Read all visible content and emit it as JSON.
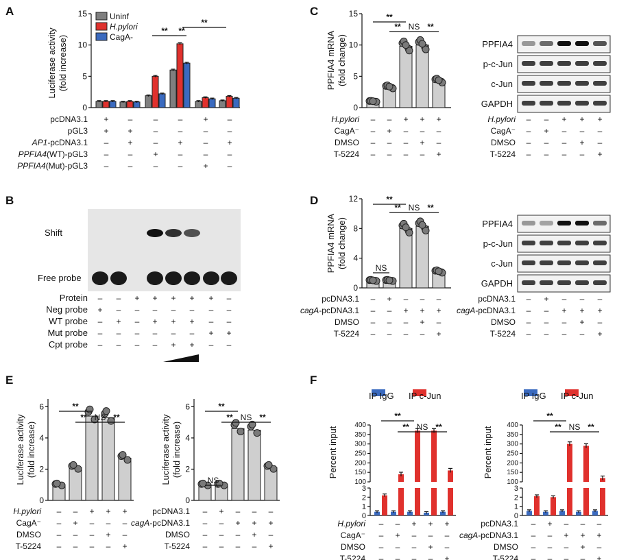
{
  "panels": {
    "A": {
      "label": "A",
      "legend": [
        "Uninf",
        "H.pylori",
        "CagA-"
      ],
      "colors": {
        "Uninf": "#7f7f7f",
        "H.pylori": "#e0312d",
        "CagA-": "#3a6abf"
      },
      "ylabel": [
        "Luciferase activity",
        "(fold increase)"
      ],
      "yticks": [
        "0",
        "5",
        "10",
        "15"
      ],
      "sig": [
        "**",
        "**",
        "**"
      ],
      "rows": [
        {
          "label": "pcDNA3.1",
          "marks": [
            "+",
            "–",
            "–",
            "–",
            "+",
            "–"
          ]
        },
        {
          "label": "pGL3",
          "marks": [
            "+",
            "+",
            "–",
            "–",
            "–",
            "–"
          ]
        },
        {
          "label": "AP1-pcDNA3.1",
          "italic": "AP1",
          "rest": "-pcDNA3.1",
          "marks": [
            "–",
            "+",
            "–",
            "+",
            "–",
            "+"
          ]
        },
        {
          "label": "PPFIA4(WT)-pGL3",
          "italic": "PPFIA4",
          "rest": "(WT)-pGL3",
          "marks": [
            "–",
            "–",
            "+",
            "–",
            "–",
            "–"
          ]
        },
        {
          "label": "PPFIA4(Mut)-pGL3",
          "italic": "PPFIA4",
          "rest": "(Mut)-pGL3",
          "marks": [
            "–",
            "–",
            "–",
            "–",
            "+",
            "–"
          ]
        }
      ]
    },
    "B": {
      "label": "B",
      "band_labels": [
        "Shift",
        "Free probe"
      ],
      "rows": [
        {
          "label": "Protein",
          "marks": [
            "–",
            "–",
            "+",
            "+",
            "+",
            "+",
            "+",
            "–"
          ]
        },
        {
          "label": "Neg probe",
          "marks": [
            "+",
            "–",
            "–",
            "–",
            "–",
            "–",
            "–",
            "–"
          ]
        },
        {
          "label": "WT probe",
          "marks": [
            "–",
            "+",
            "–",
            "+",
            "+",
            "+",
            "–",
            "–"
          ]
        },
        {
          "label": "Mut probe",
          "marks": [
            "–",
            "–",
            "–",
            "–",
            "–",
            "–",
            "+",
            "+"
          ]
        },
        {
          "label": "Cpt probe",
          "marks": [
            "–",
            "–",
            "–",
            "–",
            "+",
            "+",
            "–",
            "–"
          ]
        }
      ]
    },
    "C": {
      "label": "C",
      "ylabel": [
        "PPFIA4 mRNA",
        "(fold change)"
      ],
      "yticks": [
        "0",
        "5",
        "10",
        "15"
      ],
      "sig": [
        "**",
        "**",
        "NS",
        "**"
      ],
      "rows": [
        {
          "label": "H.pylori",
          "marks": [
            "–",
            "–",
            "+",
            "+",
            "+"
          ]
        },
        {
          "label": "CagA⁻",
          "marks": [
            "–",
            "+",
            "–",
            "–",
            "–"
          ]
        },
        {
          "label": "DMSO",
          "marks": [
            "–",
            "–",
            "–",
            "+",
            "–"
          ]
        },
        {
          "label": "T-5224",
          "marks": [
            "–",
            "–",
            "–",
            "–",
            "+"
          ]
        }
      ],
      "blot_labels": [
        "PPFIA4",
        "p-c-Jun",
        "c-Jun",
        "GAPDH"
      ]
    },
    "D": {
      "label": "D",
      "ylabel": [
        "PPFIA4 mRNA",
        "(fold change)"
      ],
      "yticks": [
        "0",
        "4",
        "8",
        "12"
      ],
      "sig": [
        "**",
        "NS",
        "**",
        "NS",
        "**"
      ],
      "rows": [
        {
          "label": "pcDNA3.1",
          "marks": [
            "–",
            "+",
            "–",
            "–",
            "–"
          ]
        },
        {
          "label": "cagA-pcDNA3.1",
          "marks": [
            "–",
            "–",
            "+",
            "+",
            "+"
          ]
        },
        {
          "label": "DMSO",
          "marks": [
            "–",
            "–",
            "–",
            "+",
            "–"
          ]
        },
        {
          "label": "T-5224",
          "marks": [
            "–",
            "–",
            "–",
            "–",
            "+"
          ]
        }
      ],
      "blot_labels": [
        "PPFIA4",
        "p-c-Jun",
        "c-Jun",
        "GAPDH"
      ]
    },
    "E": {
      "label": "E",
      "ylabel": [
        "Luciferase activity",
        "(fold increase)"
      ],
      "yticks": [
        "0",
        "2",
        "4",
        "6"
      ],
      "left_rows": [
        {
          "label": "H.pylori",
          "marks": [
            "–",
            "–",
            "+",
            "+",
            "+"
          ]
        },
        {
          "label": "CagA⁻",
          "marks": [
            "–",
            "+",
            "–",
            "–",
            "–"
          ]
        },
        {
          "label": "DMSO",
          "marks": [
            "–",
            "–",
            "–",
            "+",
            "–"
          ]
        },
        {
          "label": "T-5224",
          "marks": [
            "–",
            "–",
            "–",
            "–",
            "+"
          ]
        }
      ],
      "right_rows": [
        {
          "label": "pcDNA3.1",
          "marks": [
            "–",
            "+",
            "–",
            "–",
            "–"
          ]
        },
        {
          "label": "cagA-pcDNA3.1",
          "marks": [
            "–",
            "–",
            "+",
            "+",
            "+"
          ]
        },
        {
          "label": "DMSO",
          "marks": [
            "–",
            "–",
            "–",
            "+",
            "–"
          ]
        },
        {
          "label": "T-5224",
          "marks": [
            "–",
            "–",
            "–",
            "–",
            "+"
          ]
        }
      ],
      "sig_left": [
        "**",
        "**",
        "NS",
        "**"
      ],
      "sig_right": [
        "**",
        "NS",
        "**",
        "NS",
        "**"
      ]
    },
    "F": {
      "label": "F",
      "legend": [
        "IP IgG",
        "IP c-Jun"
      ],
      "colors": {
        "IgG": "#3a6abf",
        "cJun": "#e0312d"
      },
      "ylabel": "Percent input",
      "yticks_top": [
        "100",
        "150",
        "200",
        "250",
        "300",
        "350",
        "400"
      ],
      "yticks_bottom": [
        "0",
        "1",
        "2",
        "3"
      ],
      "left_rows": [
        {
          "label": "H.pylori",
          "marks": [
            "–",
            "–",
            "+",
            "+",
            "+"
          ]
        },
        {
          "label": "CagA⁻",
          "marks": [
            "–",
            "+",
            "–",
            "–",
            "–"
          ]
        },
        {
          "label": "DMSO",
          "marks": [
            "–",
            "–",
            "–",
            "+",
            "–"
          ]
        },
        {
          "label": "T-5224",
          "marks": [
            "–",
            "–",
            "–",
            "–",
            "+"
          ]
        }
      ],
      "right_rows": [
        {
          "label": "pcDNA3.1",
          "marks": [
            "–",
            "+",
            "–",
            "–",
            "–"
          ]
        },
        {
          "label": "cagA-pcDNA3.1",
          "marks": [
            "–",
            "–",
            "+",
            "+",
            "+"
          ]
        },
        {
          "label": "DMSO",
          "marks": [
            "–",
            "–",
            "–",
            "+",
            "–"
          ]
        },
        {
          "label": "T-5224",
          "marks": [
            "–",
            "–",
            "–",
            "–",
            "+"
          ]
        }
      ],
      "sig": [
        "**",
        "**",
        "NS",
        "**"
      ]
    }
  },
  "chart_data": [
    {
      "panel": "A",
      "type": "bar",
      "categories": [
        "1",
        "2",
        "3",
        "4",
        "5",
        "6"
      ],
      "series": [
        {
          "name": "Uninf",
          "values": [
            1.0,
            0.9,
            1.9,
            6.0,
            1.0,
            1.1
          ]
        },
        {
          "name": "H.pylori",
          "values": [
            1.0,
            1.0,
            5.0,
            10.2,
            1.6,
            1.8
          ]
        },
        {
          "name": "CagA-",
          "values": [
            1.0,
            0.9,
            2.2,
            7.1,
            1.4,
            1.5
          ]
        }
      ],
      "ylim": [
        0,
        15
      ]
    },
    {
      "panel": "C",
      "type": "bar",
      "categories": [
        "1",
        "2",
        "3",
        "4",
        "5"
      ],
      "values": [
        1.0,
        3.3,
        9.8,
        10.0,
        4.3
      ],
      "ylim": [
        0,
        15
      ]
    },
    {
      "panel": "D",
      "type": "bar",
      "categories": [
        "1",
        "2",
        "3",
        "4",
        "5"
      ],
      "values": [
        1.0,
        1.0,
        8.0,
        8.3,
        2.2
      ],
      "ylim": [
        0,
        12
      ]
    },
    {
      "panel": "E-left",
      "type": "bar",
      "categories": [
        "1",
        "2",
        "3",
        "4",
        "5"
      ],
      "values": [
        1.0,
        2.1,
        5.4,
        5.3,
        2.7
      ],
      "ylim": [
        0,
        6
      ]
    },
    {
      "panel": "E-right",
      "type": "bar",
      "categories": [
        "1",
        "2",
        "3",
        "4",
        "5"
      ],
      "values": [
        1.0,
        1.0,
        4.6,
        4.5,
        2.1
      ],
      "ylim": [
        0,
        6
      ]
    },
    {
      "panel": "F-left",
      "type": "bar",
      "categories": [
        "1",
        "2",
        "3",
        "4",
        "5"
      ],
      "series": [
        {
          "name": "IP IgG",
          "values": [
            0.4,
            0.4,
            0.4,
            0.3,
            0.4
          ]
        },
        {
          "name": "IP c-Jun",
          "values": [
            2.2,
            140,
            370,
            370,
            160
          ]
        }
      ]
    },
    {
      "panel": "F-right",
      "type": "bar",
      "categories": [
        "1",
        "2",
        "3",
        "4",
        "5"
      ],
      "series": [
        {
          "name": "IP IgG",
          "values": [
            0.5,
            0.4,
            0.5,
            0.4,
            0.5
          ]
        },
        {
          "name": "IP c-Jun",
          "values": [
            2.1,
            2.0,
            300,
            290,
            120
          ]
        }
      ]
    }
  ]
}
